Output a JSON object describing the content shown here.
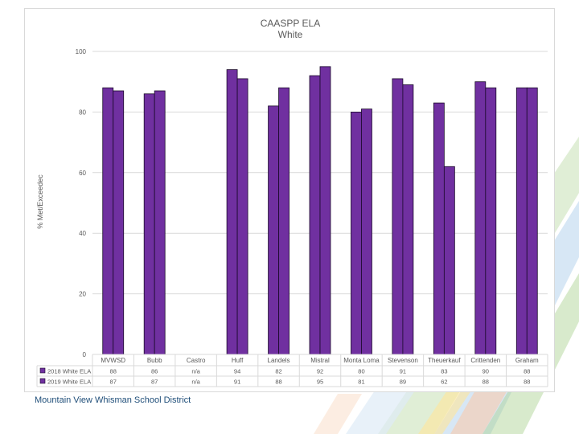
{
  "footer_text": "Mountain View Whisman School District",
  "colors": {
    "bar": "#7030a0",
    "bar_stroke": "#1a0a2a",
    "grid": "#d9d9d9",
    "text": "#595959",
    "footer": "#1f4e79"
  },
  "chart_data": {
    "type": "bar",
    "title": "CAASPP ELA",
    "subtitle": "White",
    "ylabel": "% Met/Exceedec",
    "ylim": [
      0,
      100
    ],
    "yticks": [
      0,
      20,
      40,
      60,
      80,
      100
    ],
    "grid": true,
    "legend": "data-table",
    "categories": [
      "MVWSD",
      "Bubb",
      "Castro",
      "Huff",
      "Landels",
      "Mistral",
      "Monta Loma",
      "Stevenson",
      "Theuerkauf",
      "Crittenden",
      "Graham"
    ],
    "series": [
      {
        "name": "2018 White ELA",
        "values": [
          88,
          86,
          null,
          94,
          82,
          92,
          80,
          91,
          83,
          90,
          88
        ],
        "labels": [
          "88",
          "86",
          "n/a",
          "94",
          "82",
          "92",
          "80",
          "91",
          "83",
          "90",
          "88"
        ]
      },
      {
        "name": "2019 White ELA",
        "values": [
          87,
          87,
          null,
          91,
          88,
          95,
          81,
          89,
          62,
          88,
          88
        ],
        "labels": [
          "87",
          "87",
          "n/a",
          "91",
          "88",
          "95",
          "81",
          "89",
          "62",
          "88",
          "88"
        ]
      }
    ]
  }
}
